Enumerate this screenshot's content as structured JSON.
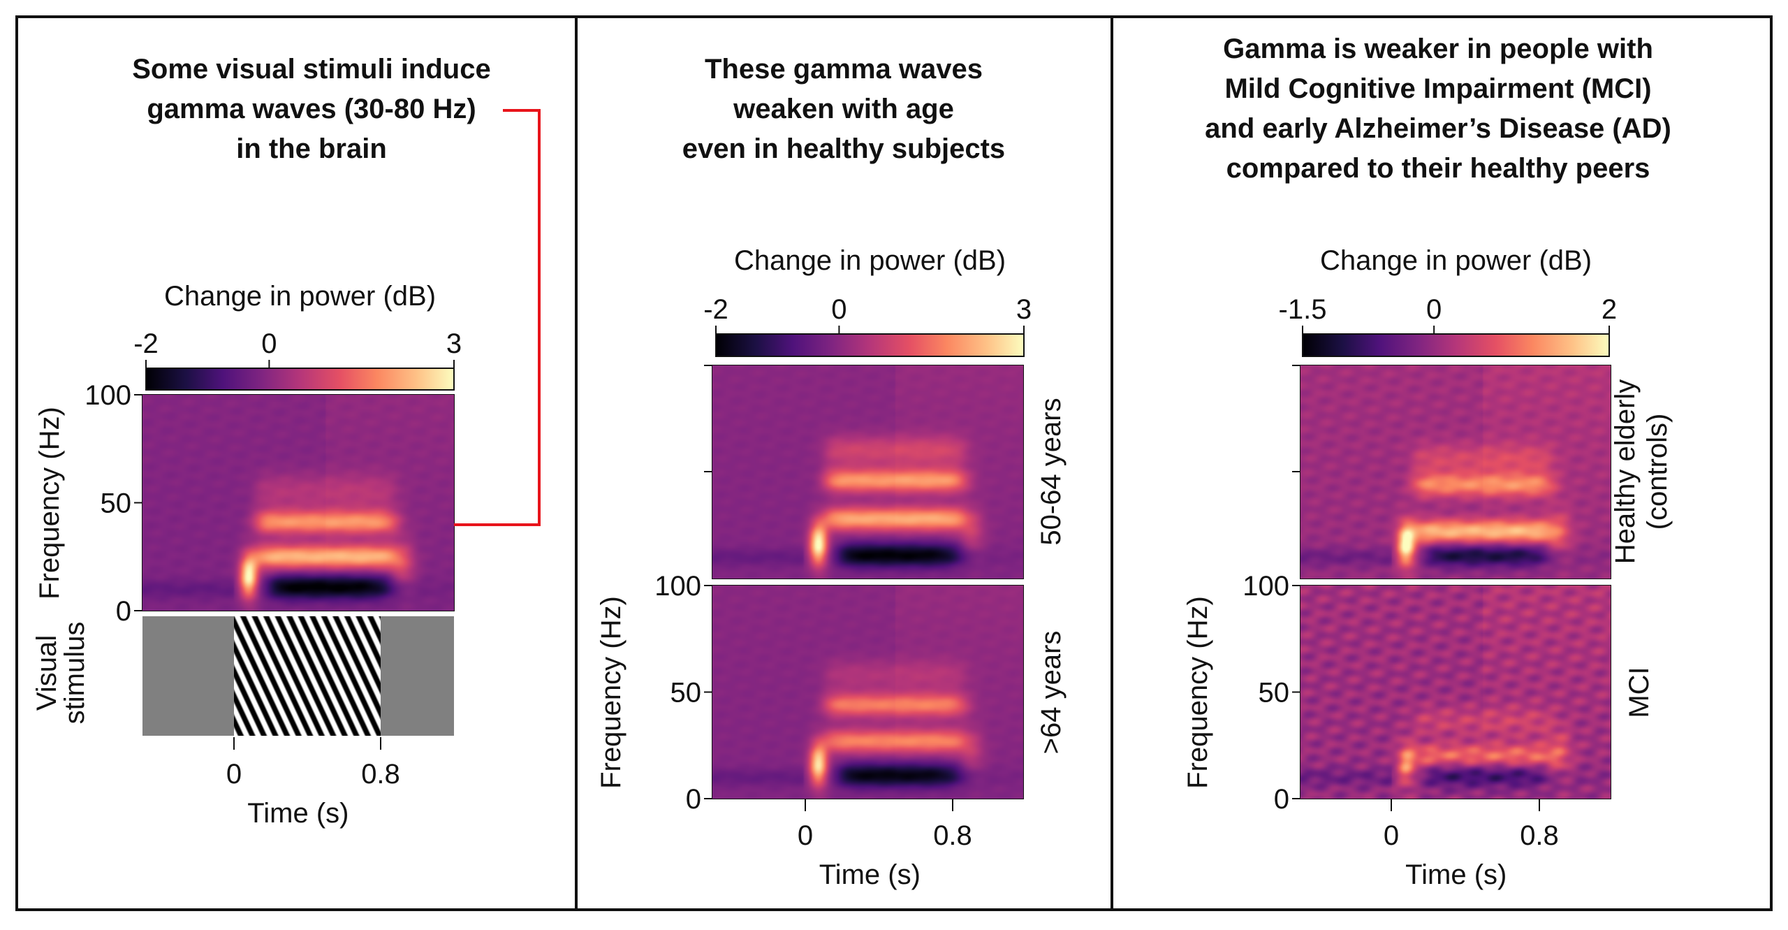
{
  "panels": [
    {
      "title_lines": [
        "Some visual stimuli induce",
        "gamma waves (30-80 Hz)",
        "in the brain"
      ],
      "row_labels": [],
      "stimulus_label_lines": [
        "Visual",
        "stimulus"
      ]
    },
    {
      "title_lines": [
        "These gamma waves",
        "weaken with age",
        "even in healthy subjects"
      ],
      "row_labels": [
        [
          "50-64 years"
        ],
        [
          ">64 years"
        ]
      ]
    },
    {
      "title_lines": [
        "Gamma is weaker in people with",
        "Mild Cognitive Impairment (MCI)",
        "and early Alzheimer’s Disease (AD)",
        "compared to their healthy peers"
      ],
      "row_labels": [
        [
          "Healthy elderly",
          "(controls)"
        ],
        [
          "MCI"
        ]
      ]
    }
  ],
  "colors": {
    "annotation": "#e8141b",
    "border": "#111111",
    "stimulus_background": "#808080"
  },
  "chart_data": [
    {
      "type": "heatmap",
      "xlabel": "Time (s)",
      "ylabel": "Frequency (Hz)",
      "xticks": [
        "0",
        "0.8"
      ],
      "yticks": [
        "0",
        "50",
        "100"
      ],
      "xlim": [
        -0.5,
        1.2
      ],
      "ylim": [
        0,
        100
      ],
      "colorbar": {
        "label": "Change in power (dB)",
        "range": [
          -2,
          3
        ],
        "ticks": [
          "-2",
          "0",
          "3"
        ],
        "colormap": "magma"
      },
      "rows": [
        {
          "label": "",
          "gamma_bands_hz": [
            41,
            25
          ]
        }
      ],
      "stimulus": {
        "label": "Visual stimulus",
        "type": "grating",
        "on_s": 0,
        "off_s": 0.8
      },
      "annotation": {
        "shape": "ellipse",
        "color": "#e8141b",
        "target": "gamma waves (30-80 Hz)"
      }
    },
    {
      "type": "heatmap",
      "xlabel": "Time (s)",
      "ylabel": "Frequency (Hz)",
      "xticks": [
        "0",
        "0.8"
      ],
      "yticks": [
        "0",
        "50",
        "100"
      ],
      "xlim": [
        -0.5,
        1.2
      ],
      "ylim": [
        0,
        100
      ],
      "colorbar": {
        "label": "Change in power (dB)",
        "range": [
          -2,
          3
        ],
        "ticks": [
          "-2",
          "0",
          "3"
        ],
        "colormap": "magma"
      },
      "rows": [
        {
          "label": "50-64 years",
          "gamma_bands_hz": [
            46,
            28
          ]
        },
        {
          "label": ">64 years",
          "gamma_bands_hz": [
            44,
            27
          ]
        }
      ]
    },
    {
      "type": "heatmap",
      "xlabel": "Time (s)",
      "ylabel": "Frequency (Hz)",
      "xticks": [
        "0",
        "0.8"
      ],
      "yticks": [
        "0",
        "50",
        "100"
      ],
      "xlim": [
        -0.5,
        1.2
      ],
      "ylim": [
        0,
        100
      ],
      "colorbar": {
        "label": "Change in power (dB)",
        "range": [
          -1.5,
          2
        ],
        "ticks": [
          "-1.5",
          "0",
          "2"
        ],
        "colormap": "magma"
      },
      "rows": [
        {
          "label": "Healthy elderly (controls)",
          "gamma_bands_hz": [
            44,
            22
          ]
        },
        {
          "label": "MCI",
          "gamma_bands_hz": [
            20
          ]
        }
      ]
    }
  ]
}
